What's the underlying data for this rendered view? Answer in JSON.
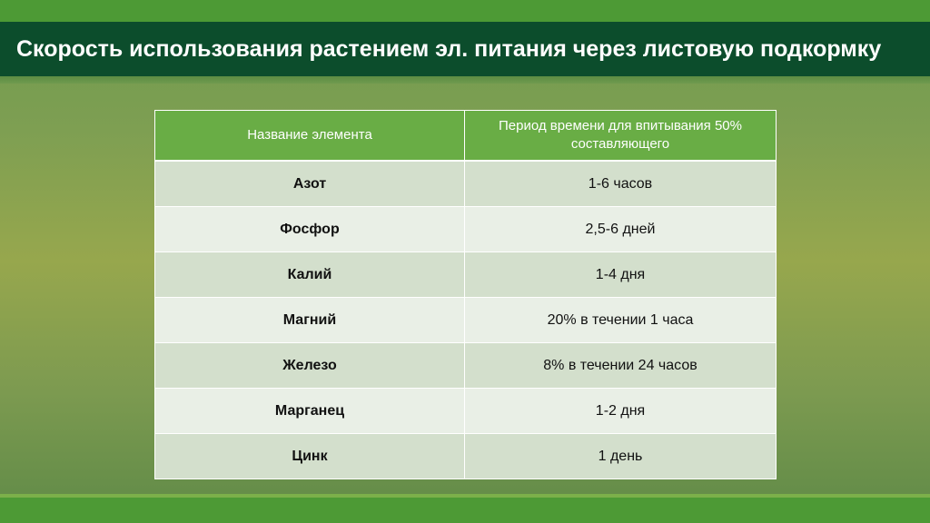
{
  "title": "Скорость использования растением эл. питания через листовую подкормку",
  "table": {
    "headers": [
      "Название элемента",
      "Период времени для впитывания 50% составляющего"
    ],
    "rows": [
      {
        "element": "Азот",
        "period": "1-6 часов"
      },
      {
        "element": "Фосфор",
        "period": "2,5-6 дней"
      },
      {
        "element": "Калий",
        "period": "1-4 дня"
      },
      {
        "element": "Магний",
        "period": "20%  в течении 1 часа"
      },
      {
        "element": "Железо",
        "period": "8%  в течении 24 часов"
      },
      {
        "element": "Марганец",
        "period": "1-2 дня"
      },
      {
        "element": "Цинк",
        "period": "1 день"
      }
    ]
  },
  "colors": {
    "title_bar": "#0c4d2c",
    "accent_green": "#4d9a35",
    "header_cell": "#69ad45",
    "row_odd": "#d3dfcc",
    "row_even": "#e9efe6"
  }
}
